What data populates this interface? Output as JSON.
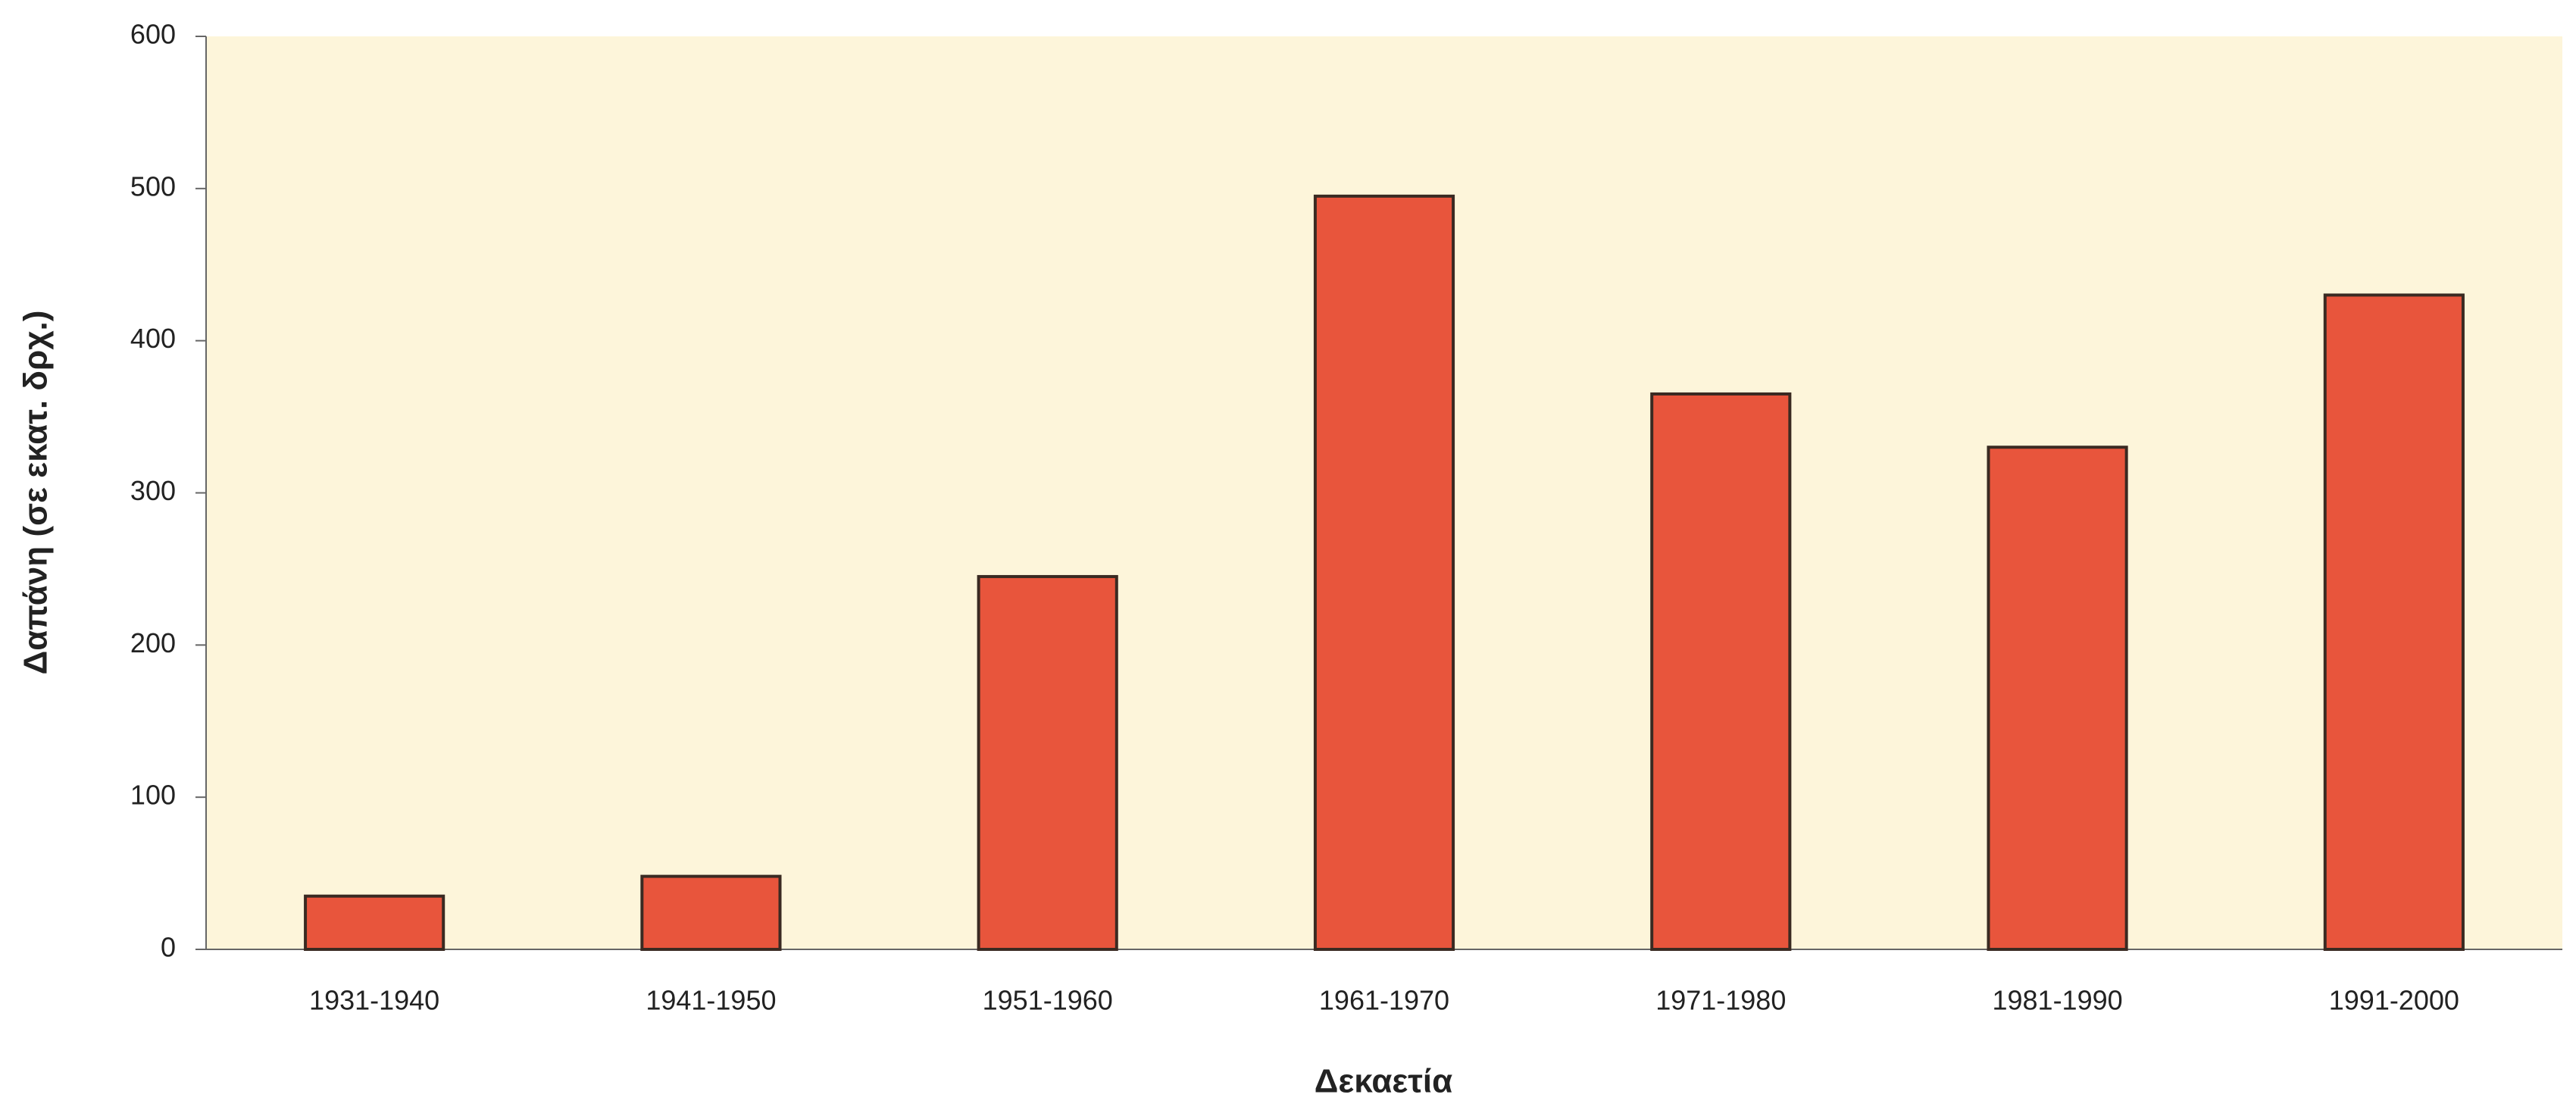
{
  "chart_data": {
    "type": "bar",
    "x_label": "Δεκαετία",
    "y_label": "Δαπάνη (σε εκατ. δρχ.)",
    "categories": [
      "1931-1940",
      "1941-1950",
      "1951-1960",
      "1961-1970",
      "1971-1980",
      "1981-1990",
      "1991-2000"
    ],
    "values": [
      35,
      48,
      245,
      495,
      365,
      330,
      430
    ],
    "color": "#e8553c",
    "ylim": [
      0,
      600
    ],
    "yticks": [
      0,
      100,
      200,
      300,
      400,
      500,
      600
    ],
    "grid": false
  }
}
